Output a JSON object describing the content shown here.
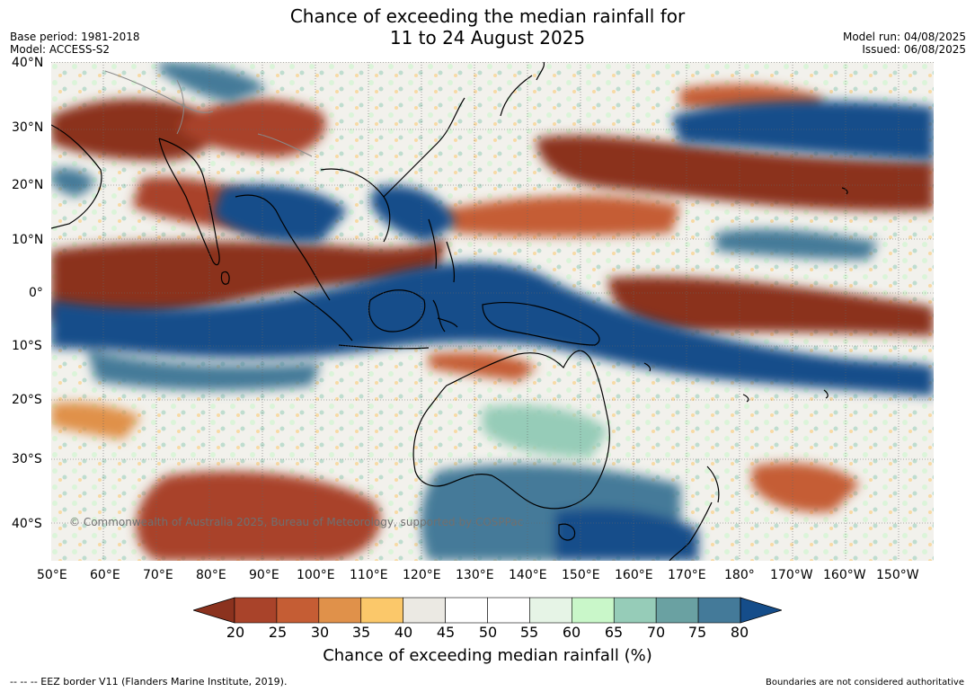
{
  "header": {
    "title_line1": "Chance of exceeding the median rainfall for",
    "title_line2": "11 to 24 August 2025",
    "base_period": "Base period: 1981-2018",
    "model": "Model: ACCESS-S2",
    "model_run": "Model run: 04/08/2025",
    "issued": "Issued: 06/08/2025"
  },
  "map": {
    "lat_labels": [
      "40°N",
      "30°N",
      "20°N",
      "10°N",
      "0°",
      "10°S",
      "20°S",
      "30°S",
      "40°S"
    ],
    "lon_labels": [
      "50°E",
      "60°E",
      "70°E",
      "80°E",
      "90°E",
      "100°E",
      "110°E",
      "120°E",
      "130°E",
      "140°E",
      "150°E",
      "160°E",
      "170°E",
      "180°",
      "170°W",
      "160°W",
      "150°W"
    ],
    "copyright": "© Commonwealth of Australia 2025, Bureau of Meteorology, supported by COSPPac"
  },
  "colorbar": {
    "ticks": [
      "20",
      "25",
      "30",
      "35",
      "40",
      "45",
      "50",
      "55",
      "60",
      "65",
      "70",
      "75",
      "80"
    ],
    "colors": [
      "#8b321e",
      "#a9432a",
      "#c55d34",
      "#e0914a",
      "#fbc86a",
      "#ebe9e3",
      "#ffffff",
      "#ffffff",
      "#e6f4e6",
      "#c9f7c9",
      "#96ccb8",
      "#6aa1a2",
      "#447a99",
      "#154d8a"
    ],
    "label": "Chance of exceeding median rainfall (%)"
  },
  "footer": {
    "eez": "--  --  -- EEZ border V11 (Flanders Marine Institute, 2019).",
    "disclaimer": "Boundaries are not considered authoritative"
  }
}
